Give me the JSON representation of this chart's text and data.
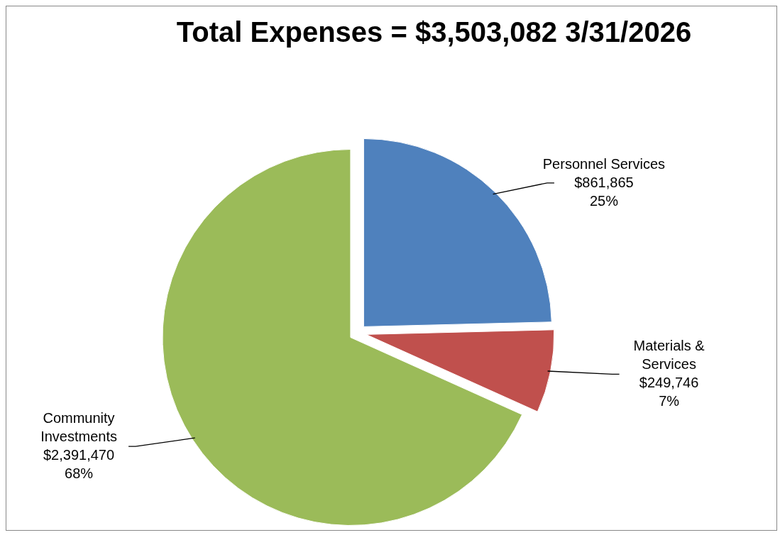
{
  "chart_data": {
    "type": "pie",
    "title": "Total Expenses = $3,503,082 3/31/2026",
    "categories": [
      "Personnel Services",
      "Materials & Services",
      "Community Investments"
    ],
    "values": [
      861865,
      249746,
      2391470
    ],
    "colors": [
      "#4f81bd",
      "#c0504d",
      "#9bbb59"
    ],
    "value_labels": [
      "$861,865\n25%",
      "$249,746\n7%",
      "$2,391,470\n68%"
    ]
  }
}
